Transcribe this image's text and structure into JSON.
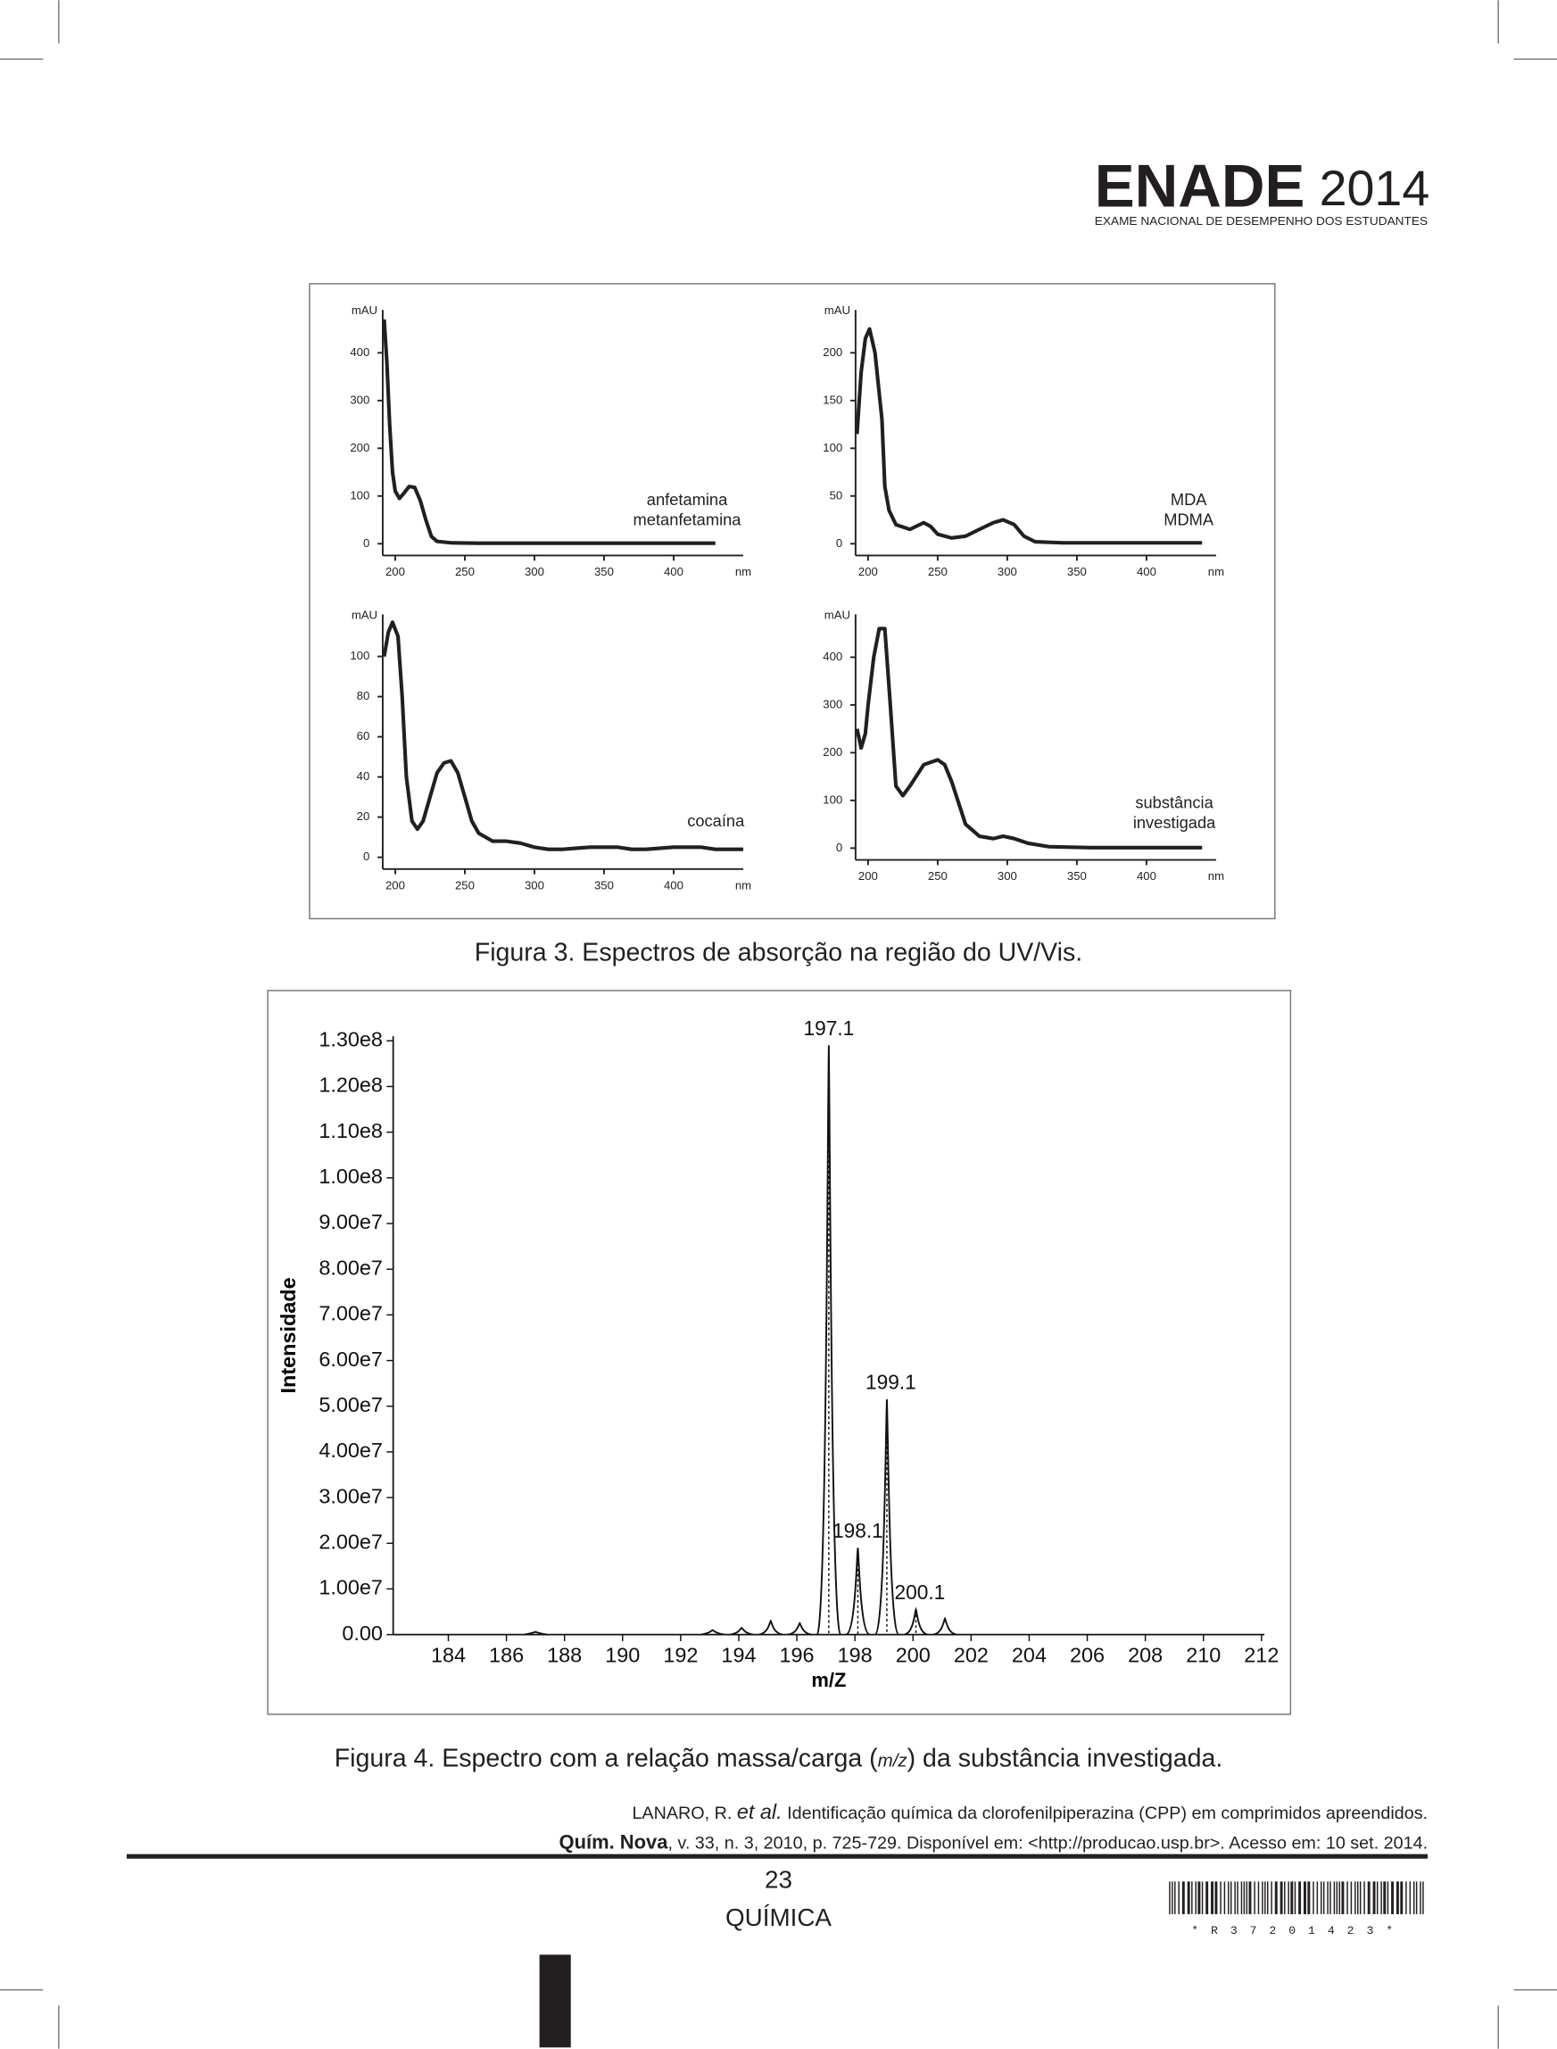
{
  "header": {
    "title": "ENADE",
    "year": "2014",
    "subtitle": "EXAME NACIONAL DE DESEMPENHO DOS ESTUDANTES"
  },
  "chart_data": [
    {
      "type": "line",
      "y_label": "mAU",
      "x_unit": "nm",
      "annotation": [
        "anfetamina",
        "metanfetamina"
      ],
      "x": [
        192,
        194,
        196,
        198,
        200,
        203,
        206,
        210,
        214,
        218,
        222,
        226,
        230,
        240,
        260,
        300,
        350,
        400,
        430
      ],
      "series": [
        {
          "color": "#231f20",
          "values": [
            470,
            380,
            250,
            150,
            110,
            95,
            105,
            120,
            118,
            90,
            50,
            15,
            5,
            2,
            1,
            1,
            1,
            1,
            1
          ]
        }
      ],
      "xlim": [
        191,
        450
      ],
      "ylim": [
        0,
        490
      ],
      "xticks": [
        200,
        250,
        300,
        350,
        400
      ],
      "yticks": [
        0,
        100,
        200,
        300,
        400
      ]
    },
    {
      "type": "line",
      "y_label": "mAU",
      "x_unit": "nm",
      "annotation": [
        "MDA",
        "MDMA"
      ],
      "x": [
        192,
        195,
        198,
        201,
        205,
        210,
        212,
        215,
        220,
        230,
        240,
        245,
        250,
        260,
        270,
        280,
        290,
        297,
        305,
        312,
        320,
        340,
        400,
        440
      ],
      "series": [
        {
          "color": "#231f20",
          "values": [
            115,
            180,
            215,
            225,
            200,
            130,
            60,
            35,
            20,
            15,
            22,
            18,
            10,
            6,
            8,
            15,
            22,
            25,
            20,
            8,
            2,
            1,
            1,
            1
          ]
        }
      ],
      "xlim": [
        191,
        450
      ],
      "ylim": [
        0,
        245
      ],
      "xticks": [
        200,
        250,
        300,
        350,
        400
      ],
      "yticks": [
        0,
        50,
        100,
        150,
        200
      ]
    },
    {
      "type": "line",
      "y_label": "mAU",
      "x_unit": "nm",
      "annotation": [
        "cocaína"
      ],
      "x": [
        192,
        195,
        198,
        202,
        205,
        208,
        212,
        216,
        220,
        225,
        230,
        235,
        240,
        245,
        250,
        255,
        260,
        270,
        280,
        290,
        300,
        310,
        320,
        340,
        360,
        370,
        380,
        400,
        420,
        430,
        450
      ],
      "series": [
        {
          "color": "#231f20",
          "values": [
            100,
            112,
            117,
            110,
            80,
            40,
            18,
            14,
            18,
            30,
            42,
            47,
            48,
            42,
            30,
            18,
            12,
            8,
            8,
            7,
            5,
            4,
            4,
            5,
            5,
            4,
            4,
            5,
            5,
            4,
            4
          ]
        }
      ],
      "xlim": [
        191,
        450
      ],
      "ylim": [
        0,
        121
      ],
      "xticks": [
        200,
        250,
        300,
        350,
        400
      ],
      "yticks": [
        0,
        20,
        40,
        60,
        80,
        100
      ]
    },
    {
      "type": "line",
      "y_label": "mAU",
      "x_unit": "nm",
      "annotation": [
        "substância",
        "investigada"
      ],
      "x": [
        192,
        195,
        198,
        200,
        204,
        208,
        212,
        216,
        220,
        225,
        230,
        240,
        250,
        255,
        260,
        270,
        280,
        290,
        297,
        305,
        315,
        330,
        360,
        400,
        440
      ],
      "series": [
        {
          "color": "#231f20",
          "values": [
            250,
            210,
            240,
            300,
            400,
            460,
            460,
            300,
            130,
            110,
            130,
            175,
            185,
            175,
            140,
            50,
            25,
            20,
            25,
            20,
            10,
            3,
            1,
            1,
            1
          ]
        }
      ],
      "xlim": [
        191,
        450
      ],
      "ylim": [
        0,
        490
      ],
      "xticks": [
        200,
        250,
        300,
        350,
        400
      ],
      "yticks": [
        0,
        100,
        200,
        300,
        400
      ]
    },
    {
      "type": "spectrum",
      "x_label": "m/Z",
      "y_label": "Intensidade",
      "x": [
        187,
        193.1,
        194.1,
        195.1,
        196.1,
        197.1,
        198.1,
        199.1,
        200.1,
        201.1
      ],
      "series": [
        {
          "color": "#111111",
          "values": [
            600000,
            1000000,
            1500000,
            3000000,
            2500000,
            129000000,
            19000000,
            51500000,
            5500000,
            3500000
          ]
        }
      ],
      "annotations": [
        {
          "text": "197.1",
          "x": 197.1
        },
        {
          "text": "198.1",
          "x": 198.1
        },
        {
          "text": "199.1",
          "x": 199.1
        },
        {
          "text": "200.1",
          "x": 200.1
        }
      ],
      "xlim": [
        182.1,
        212.1
      ],
      "ylim": [
        0,
        131000000
      ],
      "xticks": [
        184,
        186,
        188,
        190,
        192,
        194,
        196,
        198,
        200,
        202,
        204,
        206,
        208,
        210,
        212
      ],
      "yticks": [
        {
          "value": 0,
          "label": "0.00"
        },
        {
          "value": 10000000,
          "label": "1.00e7"
        },
        {
          "value": 20000000,
          "label": "2.00e7"
        },
        {
          "value": 30000000,
          "label": "3.00e7"
        },
        {
          "value": 40000000,
          "label": "4.00e7"
        },
        {
          "value": 50000000,
          "label": "5.00e7"
        },
        {
          "value": 60000000,
          "label": "6.00e7"
        },
        {
          "value": 70000000,
          "label": "7.00e7"
        },
        {
          "value": 80000000,
          "label": "8.00e7"
        },
        {
          "value": 90000000,
          "label": "9.00e7"
        },
        {
          "value": 100000000,
          "label": "1.00e8"
        },
        {
          "value": 110000000,
          "label": "1.10e8"
        },
        {
          "value": 120000000,
          "label": "1.20e8"
        },
        {
          "value": 130000000,
          "label": "1.30e8"
        }
      ]
    }
  ],
  "figure3_caption": "Figura 3. Espectros de absorção na região do UV/Vis.",
  "figure4_caption": {
    "before": "Figura 4. Espectro com a relação massa/carga (",
    "italic": "m/z",
    "after": ") da substância investigada."
  },
  "reference": {
    "line1": {
      "author": "LANARO, R. ",
      "italic": "et al.",
      "rest": " Identificação química da clorofenilpiperazina (CPP) em comprimidos apreendidos."
    },
    "line2": {
      "bold": "Quím. Nova",
      "rest": ", v. 33, n. 3, 2010, p. 725-729. Disponível em: <http://producao.usp.br>. Acesso em: 10 set. 2014."
    }
  },
  "footer": {
    "page": "23",
    "subject": "QUÍMICA",
    "barcode": "*R37201423*"
  }
}
